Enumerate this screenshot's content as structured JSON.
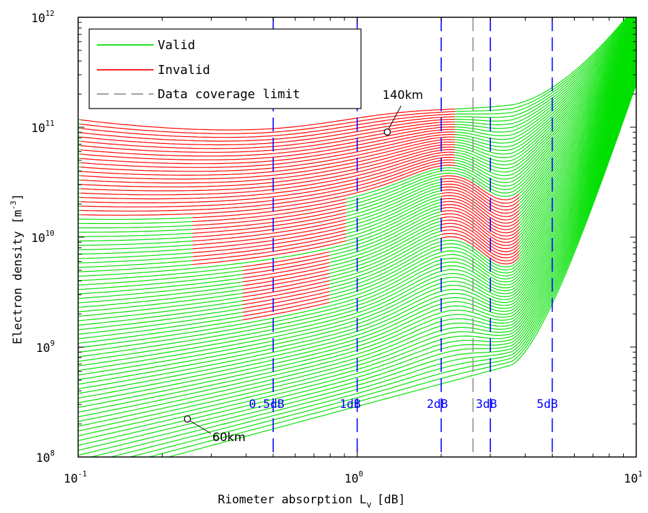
{
  "chart_data": {
    "type": "line",
    "title": "",
    "xlabel_main": "Riometer absorption L",
    "xlabel_sub": "v",
    "xlabel_unit": "[dB]",
    "ylabel_main": "Electron density [m",
    "ylabel_sup": "-3",
    "ylabel_end": "]",
    "x_scale": "log",
    "y_scale": "log",
    "xlim": [
      0.1,
      10
    ],
    "ylim": [
      100000000,
      1000000000000
    ],
    "x_ticks": [
      {
        "base": "10",
        "exp": "-1"
      },
      {
        "base": "10",
        "exp": "0"
      },
      {
        "base": "10",
        "exp": "1"
      }
    ],
    "y_ticks": [
      {
        "base": "10",
        "exp": "8"
      },
      {
        "base": "10",
        "exp": "9"
      },
      {
        "base": "10",
        "exp": "10"
      },
      {
        "base": "10",
        "exp": "11"
      },
      {
        "base": "10",
        "exp": "12"
      }
    ],
    "grid": false,
    "legend_position": "top-left",
    "legend": [
      {
        "label": "Valid",
        "color": "#00e000",
        "style": "solid"
      },
      {
        "label": "Invalid",
        "color": "#ff0000",
        "style": "solid"
      },
      {
        "label": "Data coverage limit",
        "color": "#909090",
        "style": "dashed"
      }
    ],
    "reference_lines": [
      {
        "x": 0.5,
        "label": "0.5dB",
        "color": "#0000ff"
      },
      {
        "x": 1,
        "label": "1dB",
        "color": "#0000ff"
      },
      {
        "x": 2,
        "label": "2dB",
        "color": "#0000ff"
      },
      {
        "x": 3,
        "label": "3dB",
        "color": "#0000ff"
      },
      {
        "x": 5,
        "label": "5dB",
        "color": "#0000ff"
      }
    ],
    "coverage_limit": {
      "x": 2.6,
      "color": "#909090"
    },
    "annotations": [
      {
        "text": "140km",
        "point": [
          1.3,
          85000000000
        ]
      },
      {
        "text": "60km",
        "point": [
          0.25,
          230000000
        ]
      }
    ],
    "series_summary": {
      "altitudes_km": [
        60,
        140
      ],
      "curve_count": 81,
      "valid_color": "#00e000",
      "invalid_color": "#ff0000"
    }
  }
}
